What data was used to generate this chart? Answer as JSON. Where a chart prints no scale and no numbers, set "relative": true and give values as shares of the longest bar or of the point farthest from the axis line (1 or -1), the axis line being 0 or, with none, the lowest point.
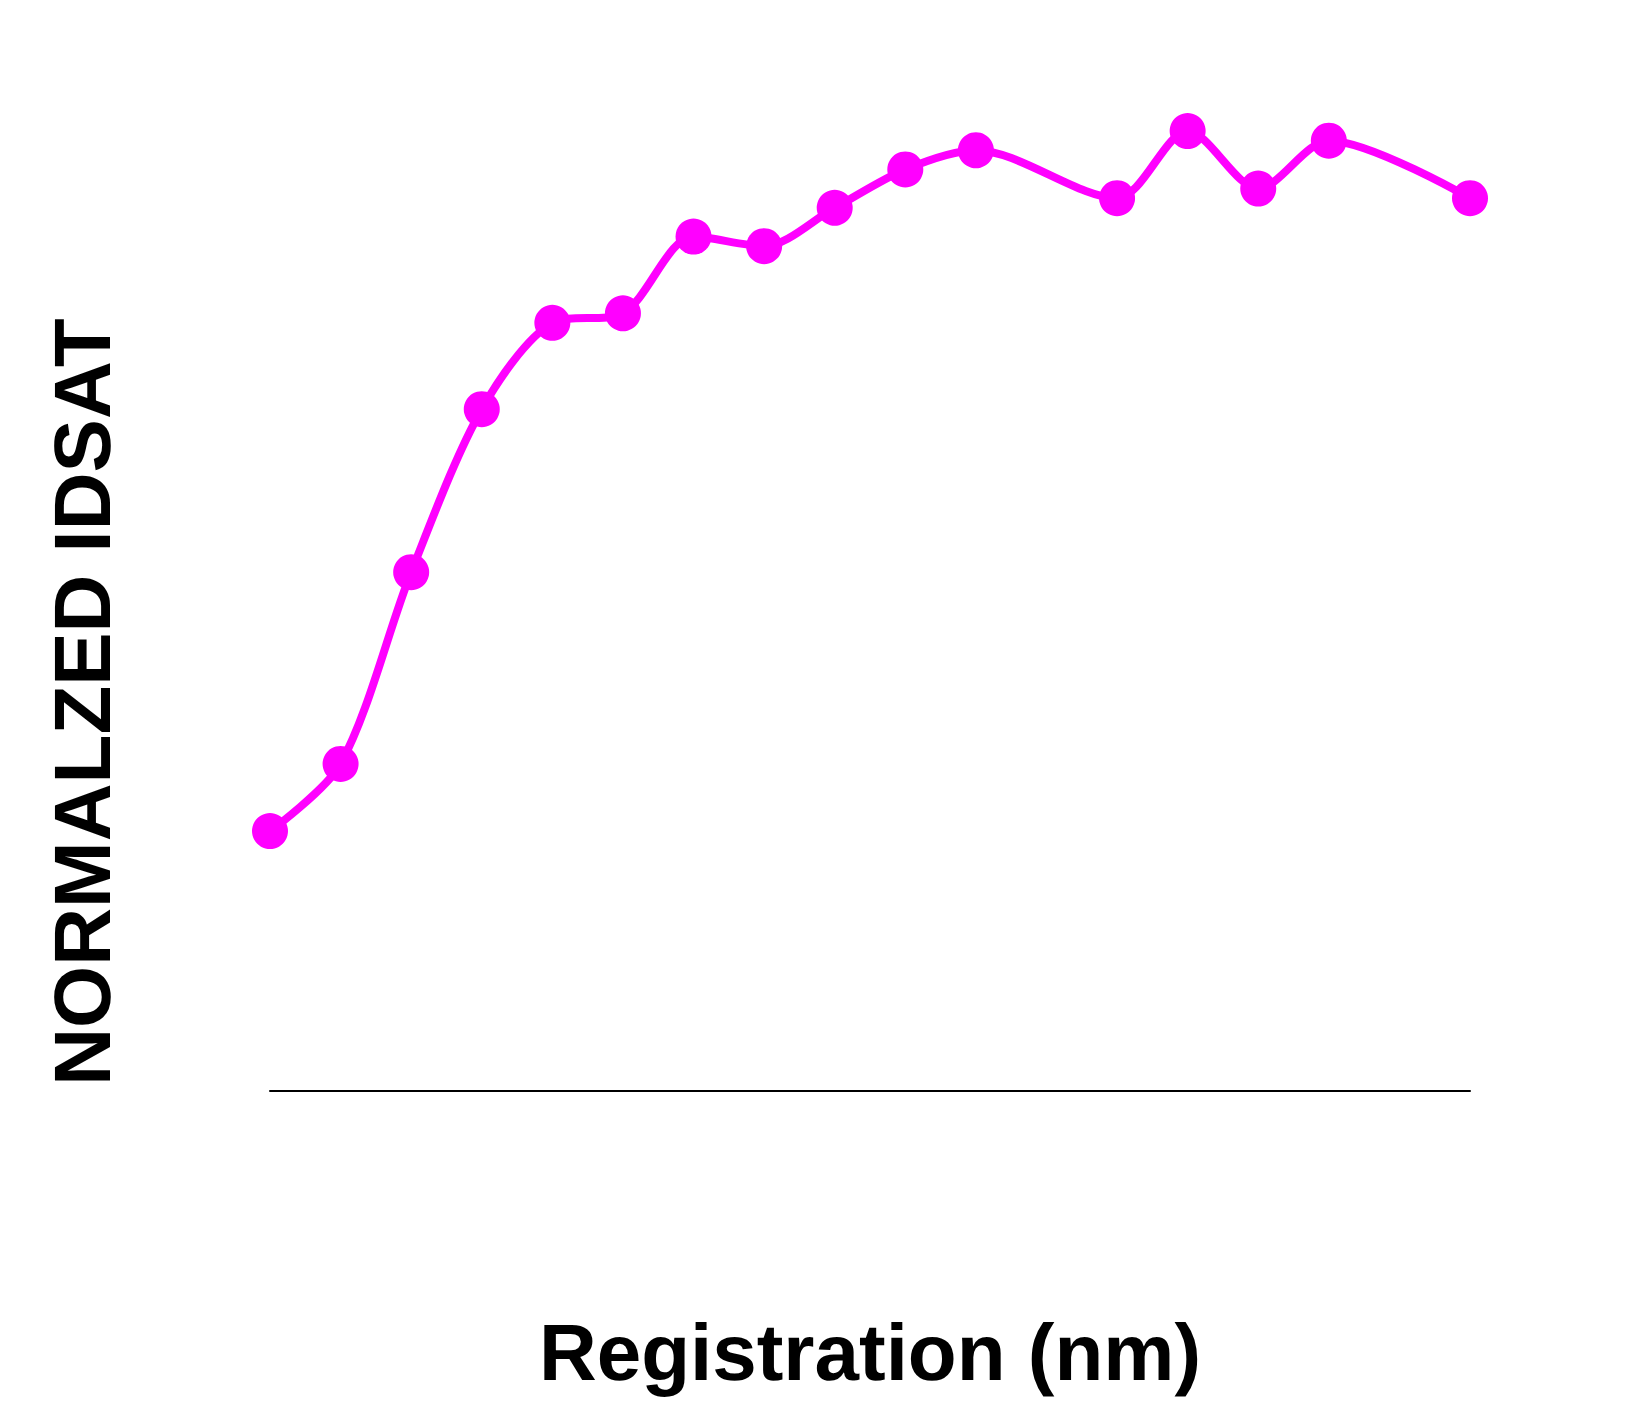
{
  "chart_data": {
    "type": "line",
    "relative": true,
    "xlabel": "Registration (nm)",
    "ylabel": "NORMALZED IDSAT",
    "categories": [
      null,
      null,
      null,
      null,
      null,
      null,
      null,
      null,
      null,
      null,
      null,
      null,
      null,
      null,
      null,
      null,
      null,
      null
    ],
    "series": [
      {
        "color": "#ff00ff",
        "values": [
          0.27,
          0.34,
          0.54,
          0.71,
          0.8,
          0.81,
          0.89,
          0.88,
          0.92,
          0.96,
          0.98,
          null,
          0.93,
          1,
          0.94,
          0.99,
          null,
          0.93
        ]
      }
    ],
    "marker": "circle",
    "line_style": "solid",
    "grid": false
  }
}
